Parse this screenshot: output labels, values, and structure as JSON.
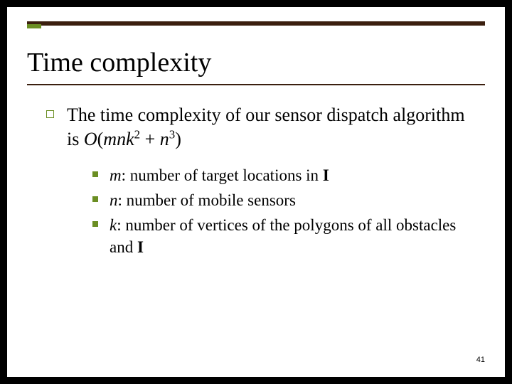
{
  "title": "Time complexity",
  "main_point": {
    "prefix": "The time complexity of our sensor dispatch algorithm is ",
    "bigO_open": "O",
    "term1_m": "m",
    "term1_n": "n",
    "term1_k": "k",
    "exp1": "2",
    "plus": " + ",
    "term2_n": "n",
    "exp2": "3",
    "close": ")"
  },
  "sub": [
    {
      "var": "m",
      "sep": ": ",
      "desc": "number of target locations in ",
      "bold": "I"
    },
    {
      "var": "n",
      "sep": ": ",
      "desc": "number of mobile sensors",
      "bold": ""
    },
    {
      "var": "k",
      "sep": ": ",
      "desc": "number of vertices of the polygons of all obstacles and ",
      "bold": "I"
    }
  ],
  "page_number": "41",
  "colors": {
    "accent": "#6b8e23",
    "bar": "#3b1f0f",
    "bg": "#ffffff",
    "frame": "#000000"
  }
}
